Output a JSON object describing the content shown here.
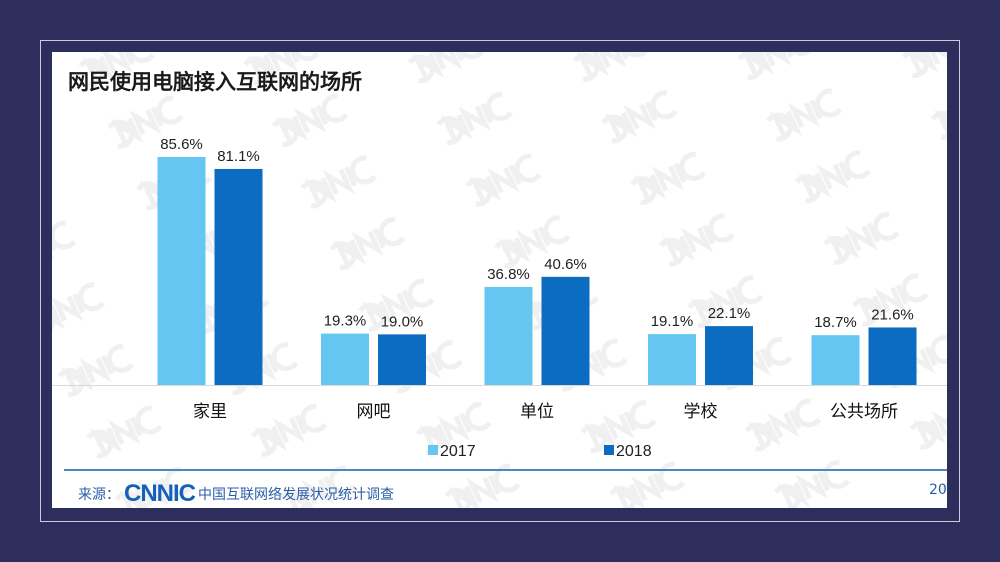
{
  "title": "网民使用电脑接入互联网的场所",
  "watermark": "CNNIC",
  "colors": {
    "background": "#2e2e5c",
    "series_2017": "#66c6f2",
    "series_2018": "#0b6cc2",
    "footer_line": "#4a86c8"
  },
  "chart_data": {
    "type": "bar",
    "title": "网民使用电脑接入互联网的场所",
    "categories": [
      "家里",
      "网吧",
      "单位",
      "学校",
      "公共场所"
    ],
    "series": [
      {
        "name": "2017",
        "values": [
          85.6,
          19.3,
          36.8,
          19.1,
          18.7
        ],
        "labels": [
          "85.6%",
          "19.3%",
          "36.8%",
          "19.1%",
          "18.7%"
        ]
      },
      {
        "name": "2018",
        "values": [
          81.1,
          19.0,
          40.6,
          22.1,
          21.6
        ],
        "labels": [
          "81.1%",
          "19.0%",
          "40.6%",
          "22.1%",
          "21.6%"
        ]
      }
    ],
    "ylim": [
      0,
      100
    ],
    "grid": false,
    "legend": "bottom"
  },
  "footer": {
    "source_label": "来源：",
    "logo": "CNNIC",
    "source_text": "中国互联网络发展状况统计调查",
    "page": "20"
  }
}
